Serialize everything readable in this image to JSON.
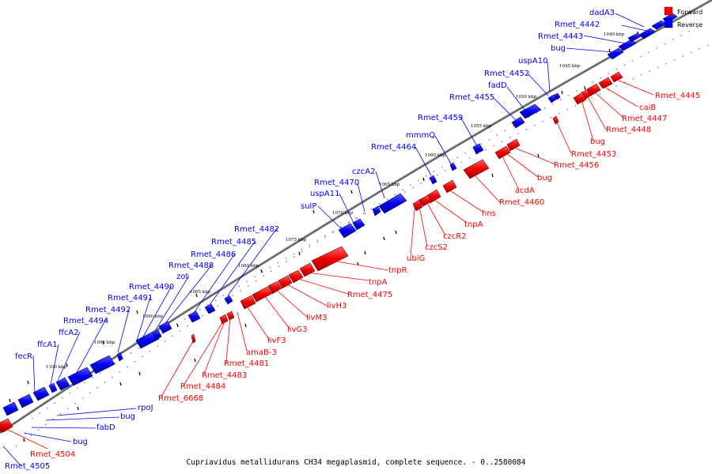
{
  "legend": {
    "forward_label": "Forward",
    "reverse_label": "Reverse",
    "forward_color": "#ff0000",
    "reverse_color": "#0000ff"
  },
  "caption": "Cupriavidus metallidurans CH34 megaplasmid, complete sequence. - 0..2580084",
  "scale_labels": [
    "1040 kbp",
    "1045 kbp",
    "1050 kbp",
    "1055 kbp",
    "1060 kbp",
    "1065 kbp",
    "1070 kbp",
    "1075 kbp",
    "1080 kbp",
    "1085 kbp",
    "1090 kbp",
    "1095 kbp",
    "1100 kbp"
  ],
  "reverse_labels": [
    "dadA3",
    "Rmet_4442",
    "Rmet_4443",
    "bug",
    "uspA10",
    "Rmet_4452",
    "fadD",
    "Rmet_4455",
    "Rmet_4459",
    "mmmQ",
    "Rmet_4464",
    "czcA2",
    "Rmet_4470",
    "uspA11",
    "sulP",
    "Rmet_4482",
    "Rmet_4485",
    "Rmet_4486",
    "Rmet_4488",
    "zot",
    "Rmet_4490",
    "Rmet_4491",
    "Rmet_4492",
    "Rmet_4494",
    "ffcA2",
    "ffcA1",
    "fecR",
    "rpoJ",
    "bug",
    "fabD",
    "bug",
    "Rmet_4505"
  ],
  "forward_labels": [
    "Rmet_4445",
    "caiB",
    "Rmet_4447",
    "Rmet_4448",
    "bug",
    "Rmet_4453",
    "Rmet_4456",
    "bug",
    "acdA",
    "Rmet_4460",
    "hns",
    "tnpA",
    "czcR2",
    "czcS2",
    "ubiG",
    "tnpR",
    "tnpA",
    "Rmet_4475",
    "livH3",
    "livM3",
    "livG3",
    "livF3",
    "amaB-3",
    "Rmet_4481",
    "Rmet_4483",
    "Rmet_4484",
    "Rmet_6668",
    "Rmet_4504"
  ]
}
